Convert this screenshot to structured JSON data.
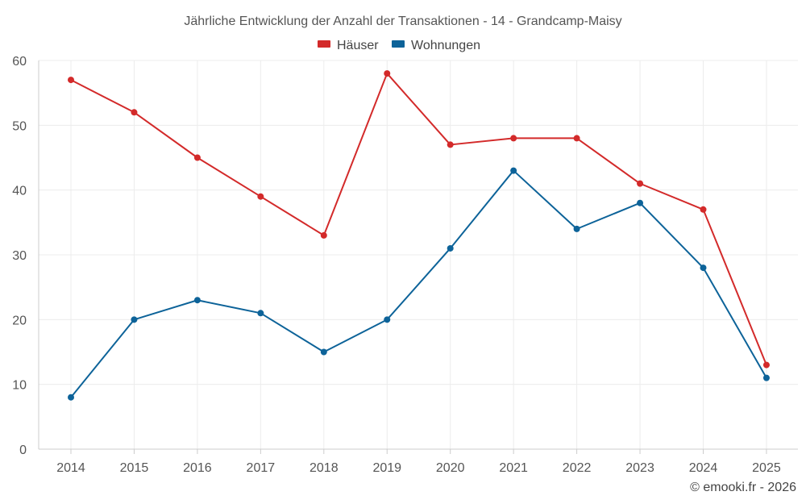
{
  "chart_data": {
    "type": "line",
    "title": "Jährliche Entwicklung der Anzahl der Transaktionen - 14 - Grandcamp-Maisy",
    "categories": [
      "2014",
      "2015",
      "2016",
      "2017",
      "2018",
      "2019",
      "2020",
      "2021",
      "2022",
      "2023",
      "2024",
      "2025"
    ],
    "series": [
      {
        "name": "Häuser",
        "color": "#d32a2a",
        "values": [
          57,
          52,
          45,
          39,
          33,
          58,
          47,
          48,
          48,
          41,
          37,
          13
        ]
      },
      {
        "name": "Wohnungen",
        "color": "#0d6399",
        "values": [
          8,
          20,
          23,
          21,
          15,
          20,
          31,
          43,
          34,
          38,
          28,
          11
        ]
      }
    ],
    "yticks": [
      "0",
      "10",
      "20",
      "30",
      "40",
      "50",
      "60"
    ],
    "ylim": [
      0,
      60
    ],
    "xlabel": "",
    "ylabel": "",
    "grid": true,
    "legend": "top-center"
  },
  "credit": "© emooki.fr - 2026"
}
